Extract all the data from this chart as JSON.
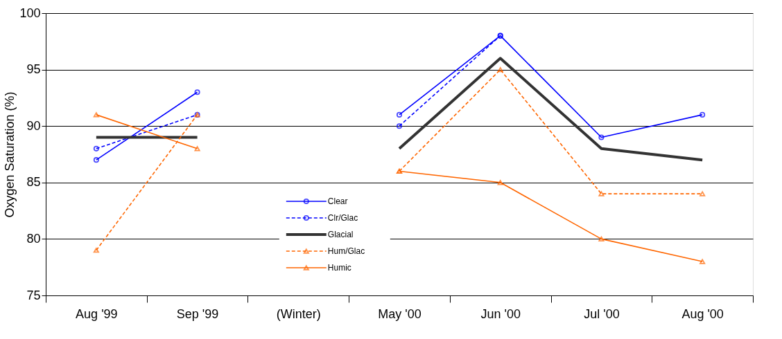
{
  "chart_data": {
    "type": "line",
    "ylabel": "Oxygen Saturation (%)",
    "categories": [
      "Aug '99",
      "Sep '99",
      "(Winter)",
      "May '00",
      "Jun '00",
      "Jul '00",
      "Aug '00"
    ],
    "series": [
      {
        "name": "Clear",
        "color": "#0000ff",
        "marker": "circle",
        "line_style": "solid",
        "values": [
          87,
          93,
          null,
          91,
          98,
          89,
          91
        ]
      },
      {
        "name": "Clr/Glac",
        "color": "#0000ff",
        "marker": "circle",
        "line_style": "dashed",
        "values": [
          88,
          91,
          null,
          90,
          98,
          null,
          null
        ]
      },
      {
        "name": "Glacial",
        "color": "#333333",
        "marker": "none",
        "line_style": "solid",
        "values": [
          89,
          89,
          null,
          88,
          96,
          88,
          87
        ]
      },
      {
        "name": "Hum/Glac",
        "color": "#ff6600",
        "marker": "triangle",
        "line_style": "dashed",
        "values": [
          79,
          91,
          null,
          86,
          95,
          84,
          84
        ]
      },
      {
        "name": "Humic",
        "color": "#ff6600",
        "marker": "triangle",
        "line_style": "solid",
        "values": [
          91,
          88,
          null,
          86,
          85,
          80,
          78
        ]
      }
    ],
    "ylim": [
      75,
      100
    ],
    "yticks": [
      75,
      80,
      85,
      90,
      95,
      100
    ],
    "grid": "y",
    "legend": "bottom"
  }
}
